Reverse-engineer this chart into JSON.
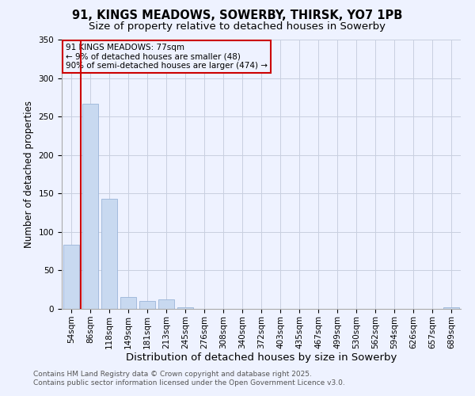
{
  "title": "91, KINGS MEADOWS, SOWERBY, THIRSK, YO7 1PB",
  "subtitle": "Size of property relative to detached houses in Sowerby",
  "xlabel": "Distribution of detached houses by size in Sowerby",
  "ylabel": "Number of detached properties",
  "categories": [
    "54sqm",
    "86sqm",
    "118sqm",
    "149sqm",
    "181sqm",
    "213sqm",
    "245sqm",
    "276sqm",
    "308sqm",
    "340sqm",
    "372sqm",
    "403sqm",
    "435sqm",
    "467sqm",
    "499sqm",
    "530sqm",
    "562sqm",
    "594sqm",
    "626sqm",
    "657sqm",
    "689sqm"
  ],
  "values": [
    83,
    267,
    143,
    15,
    10,
    12,
    2,
    0,
    0,
    0,
    0,
    0,
    0,
    0,
    0,
    0,
    0,
    0,
    0,
    0,
    2
  ],
  "bar_color": "#c8d9f0",
  "bar_edge_color": "#9ab5d8",
  "ylim": [
    0,
    350
  ],
  "yticks": [
    0,
    50,
    100,
    150,
    200,
    250,
    300,
    350
  ],
  "vline_color": "#cc0000",
  "annotation_title": "91 KINGS MEADOWS: 77sqm",
  "annotation_line2": "← 9% of detached houses are smaller (48)",
  "annotation_line3": "90% of semi-detached houses are larger (474) →",
  "annotation_box_color": "#cc0000",
  "footer_line1": "Contains HM Land Registry data © Crown copyright and database right 2025.",
  "footer_line2": "Contains public sector information licensed under the Open Government Licence v3.0.",
  "background_color": "#eef2ff",
  "grid_color": "#c8cfe0",
  "title_fontsize": 10.5,
  "subtitle_fontsize": 9.5,
  "xlabel_fontsize": 9.5,
  "ylabel_fontsize": 8.5,
  "tick_fontsize": 7.5,
  "footer_fontsize": 6.5
}
